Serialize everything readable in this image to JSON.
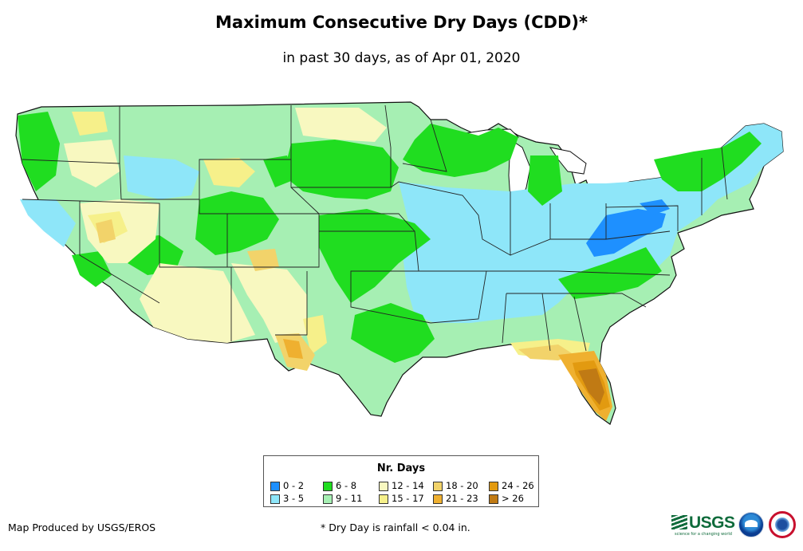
{
  "title": "Maximum Consecutive Dry Days (CDD)*",
  "subtitle": "in past 30 days, as of Apr 01, 2020",
  "legend": {
    "title": "Nr. Days",
    "items": [
      {
        "label": "0 - 2",
        "color": "#1e90ff"
      },
      {
        "label": "3 - 5",
        "color": "#8ee6f9"
      },
      {
        "label": "6 - 8",
        "color": "#20dd20"
      },
      {
        "label": "9 - 11",
        "color": "#a6efb3"
      },
      {
        "label": "12 - 14",
        "color": "#f8f8c0"
      },
      {
        "label": "15 - 17",
        "color": "#f6f08a"
      },
      {
        "label": "18 - 20",
        "color": "#f2d36a"
      },
      {
        "label": "21 - 23",
        "color": "#efb030"
      },
      {
        "label": "24 - 26",
        "color": "#e29a10"
      },
      {
        "label": "> 26",
        "color": "#c07a14"
      }
    ]
  },
  "footer": {
    "credit": "Map Produced by USGS/EROS",
    "note": "* Dry Day is rainfall < 0.04 in."
  },
  "logos": {
    "usgs": "USGS",
    "usgs_tagline": "science for a changing world"
  }
}
